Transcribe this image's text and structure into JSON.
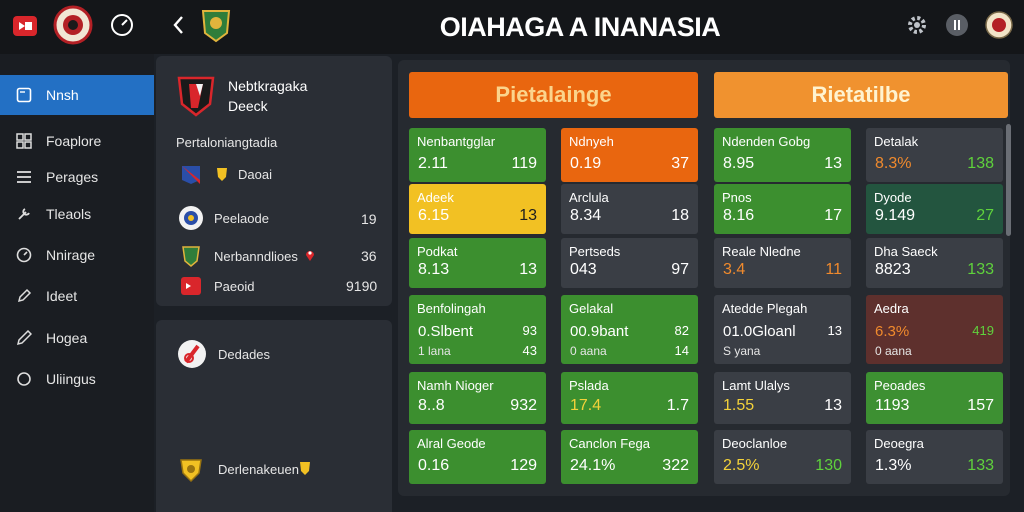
{
  "app": {
    "title": "OIAHAGA A INANASIA"
  },
  "colors": {
    "accent": "#2370c4",
    "orange": "#e9660f",
    "green": "#3c8f2f",
    "yellow": "#f2c123"
  },
  "sidebar": {
    "items": [
      {
        "label": "Nnsh",
        "icon": "window-icon"
      },
      {
        "label": "Foaplore",
        "icon": "grid-icon"
      },
      {
        "label": "Perages",
        "icon": "list-icon"
      },
      {
        "label": "Tleaols",
        "icon": "tool-icon"
      },
      {
        "label": "Nnirage",
        "icon": "gauge-icon"
      },
      {
        "label": "Ideet",
        "icon": "edit-icon"
      },
      {
        "label": "Hogea",
        "icon": "pencil-icon"
      },
      {
        "label": "Uliingus",
        "icon": "circle-icon"
      }
    ]
  },
  "left_panel": {
    "team_name": "Nebtkragaka",
    "team_sub": "Deeck",
    "section_label": "Pertaloniangtadia",
    "rows": [
      {
        "label": "Daoai",
        "value": ""
      },
      {
        "label": "Peelaode",
        "value": "19"
      },
      {
        "label": "Nerbanndlioes",
        "value": "36"
      },
      {
        "label": "Paeoid",
        "value": "9190"
      }
    ]
  },
  "lower_panel": {
    "item1": "Dedades",
    "item2": "Derlenakeuen"
  },
  "main": {
    "header_left": "Pietalainge",
    "header_right": "Rietatilbe",
    "columns": [
      [
        {
          "name": "Nenbantgglar",
          "left": "2.11",
          "right": "119"
        },
        {
          "name": "Adeek",
          "left": "6.15",
          "right": "13"
        },
        {
          "name": "Podkat",
          "left": "8.13",
          "right": "13"
        },
        {
          "name": "Benfolingah",
          "mid": "0.Slbent",
          "midr": "93",
          "sub": "1 lana",
          "subr": "43"
        },
        {
          "name": "Namh Nioger",
          "left": "8..8",
          "right": "932"
        },
        {
          "name": "Alral Geode",
          "left": "0.16",
          "right": "129"
        }
      ],
      [
        {
          "name": "Ndnyeh",
          "left": "0.19",
          "right": "37"
        },
        {
          "name": "Arclula",
          "left": "8.34",
          "right": "18"
        },
        {
          "name": "Pertseds",
          "left": "043",
          "right": "97"
        },
        {
          "name": "Gelakal",
          "mid": "00.9bant",
          "midr": "82",
          "sub": "0 aana",
          "subr": "14"
        },
        {
          "name": "Pslada",
          "left": "17.4",
          "right": "1.7"
        },
        {
          "name": "Canclon Fega",
          "left": "24.1%",
          "right": "322"
        }
      ],
      [
        {
          "name": "Ndenden Gobg",
          "left": "8.95",
          "right": "13"
        },
        {
          "name": "Pnos",
          "left": "8.16",
          "right": "17"
        },
        {
          "name": "Reale Nledne",
          "left": "3.4",
          "right": "11"
        },
        {
          "name": "Atedde Plegah",
          "mid": "01.0Gloanl",
          "midr": "13",
          "sub": "S yana",
          "subr": ""
        },
        {
          "name": "Lamt Ulalys",
          "left": "1.55",
          "right": "13"
        },
        {
          "name": "Deoclanloe",
          "left": "2.5%",
          "right": "130"
        }
      ],
      [
        {
          "name": "Detalak",
          "left": "8.3%",
          "right": "138"
        },
        {
          "name": "Dyode",
          "left": "9.149",
          "right": "27"
        },
        {
          "name": "Dha Saeck",
          "left": "8823",
          "right": "133"
        },
        {
          "name": "Aedra",
          "mid": "6.3%",
          "midr": "419",
          "sub": "0 aana",
          "subr": ""
        },
        {
          "name": "Peoades",
          "left": "1193",
          "right": "157"
        },
        {
          "name": "Deoegra",
          "left": "1.3%",
          "right": "133"
        }
      ]
    ]
  }
}
